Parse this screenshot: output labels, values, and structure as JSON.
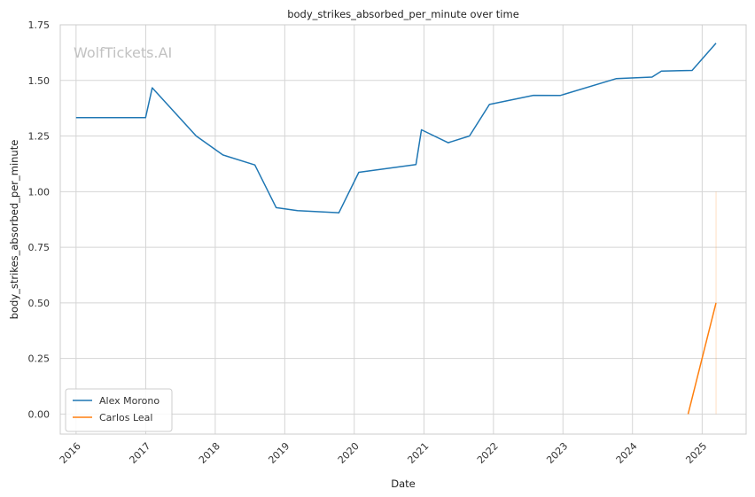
{
  "chart_data": {
    "type": "line",
    "title": "body_strikes_absorbed_per_minute over time",
    "xlabel": "Date",
    "ylabel": "body_strikes_absorbed_per_minute",
    "watermark": "WolfTickets.AI",
    "x_ticks": [
      "2016",
      "2017",
      "2018",
      "2019",
      "2020",
      "2021",
      "2022",
      "2023",
      "2024",
      "2025"
    ],
    "y_ticks": [
      "0.00",
      "0.25",
      "0.50",
      "0.75",
      "1.00",
      "1.25",
      "1.50",
      "1.75"
    ],
    "xlim": [
      "2015-10-10",
      "2025-08-20"
    ],
    "ylim": [
      -0.09,
      1.75
    ],
    "grid": true,
    "legend_position": "lower-left",
    "series": [
      {
        "name": "Alex Morono",
        "color": "#1f77b4",
        "points": [
          [
            "2016-01-01",
            1.333
          ],
          [
            "2016-12-31",
            1.333
          ],
          [
            "2017-02-04",
            1.467
          ],
          [
            "2017-09-23",
            1.25
          ],
          [
            "2018-02-10",
            1.165
          ],
          [
            "2018-07-28",
            1.12
          ],
          [
            "2018-11-17",
            0.928
          ],
          [
            "2019-03-09",
            0.915
          ],
          [
            "2019-10-12",
            0.905
          ],
          [
            "2020-01-25",
            1.087
          ],
          [
            "2020-11-20",
            1.122
          ],
          [
            "2020-12-19",
            1.278
          ],
          [
            "2021-05-08",
            1.22
          ],
          [
            "2021-08-28",
            1.25
          ],
          [
            "2021-12-11",
            1.392
          ],
          [
            "2022-07-30",
            1.433
          ],
          [
            "2022-12-17",
            1.432
          ],
          [
            "2023-10-07",
            1.508
          ],
          [
            "2024-04-13",
            1.515
          ],
          [
            "2024-06-01",
            1.542
          ],
          [
            "2024-11-09",
            1.545
          ],
          [
            "2025-03-15",
            1.667
          ]
        ]
      },
      {
        "name": "Carlos Leal",
        "color": "#ff7f0e",
        "points": [
          [
            "2024-10-19",
            0.0
          ],
          [
            "2025-03-15",
            0.5
          ]
        ],
        "band": {
          "x": "2025-03-15",
          "y": [
            0.0,
            1.0
          ]
        }
      }
    ]
  }
}
